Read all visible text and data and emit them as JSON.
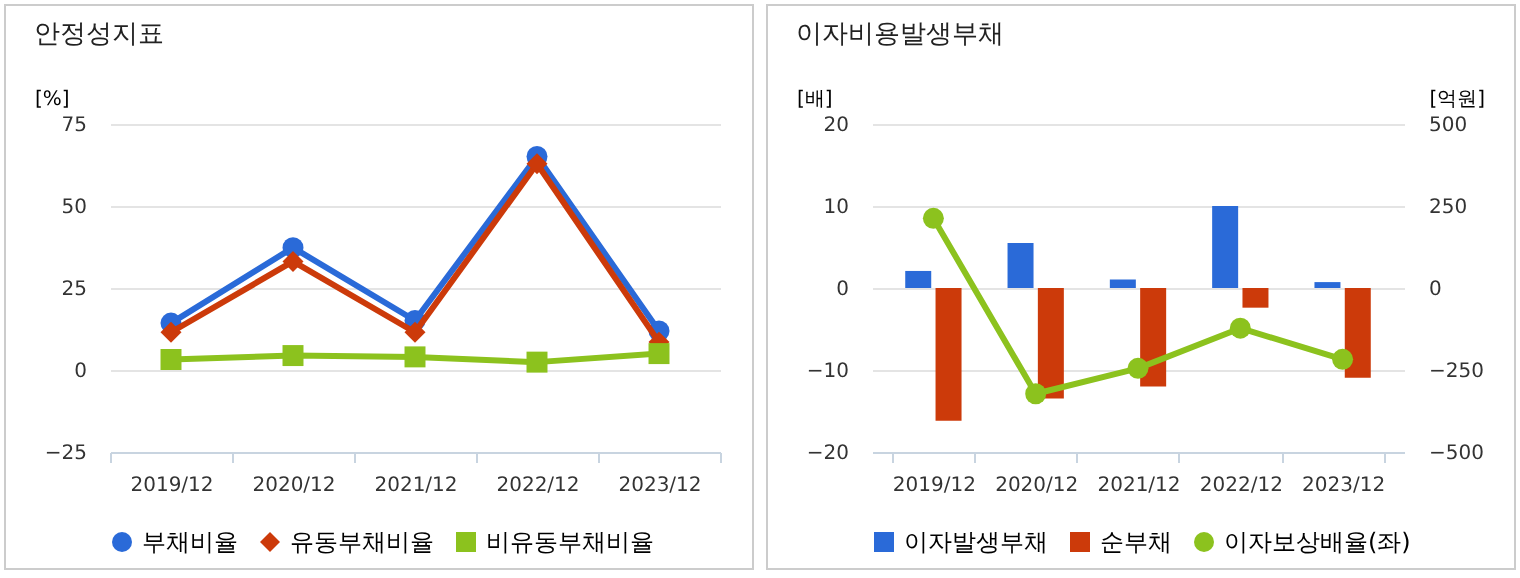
{
  "chart_data": [
    {
      "type": "line",
      "title": "안정성지표",
      "ylabel": "[%]",
      "categories": [
        "2019/12",
        "2020/12",
        "2021/12",
        "2022/12",
        "2023/12"
      ],
      "ylim": [
        -25,
        75
      ],
      "yticks": [
        -25,
        0,
        25,
        50,
        75
      ],
      "grid": "y",
      "legend": "bottom",
      "series": [
        {
          "name": "부채비율",
          "color": "#2a6ad8",
          "marker": "circle",
          "values": [
            14.3,
            37.3,
            15.1,
            65.1,
            11.9
          ]
        },
        {
          "name": "유동부채비율",
          "color": "#cc3a0a",
          "marker": "diamond",
          "values": [
            11.5,
            33.1,
            11.5,
            62.9,
            8.5
          ]
        },
        {
          "name": "비유동부채비율",
          "color": "#8cc21e",
          "marker": "square",
          "values": [
            3.2,
            4.4,
            4.0,
            2.4,
            5.0
          ]
        }
      ]
    },
    {
      "type": "bar",
      "title": "이자비용발생부채",
      "ylabel": "[배]",
      "y2label": "[억원]",
      "categories": [
        "2019/12",
        "2020/12",
        "2021/12",
        "2022/12",
        "2023/12"
      ],
      "ylim": [
        -20,
        20
      ],
      "yticks": [
        -20,
        -10,
        0,
        10,
        20
      ],
      "y2lim": [
        -500,
        500
      ],
      "y2ticks": [
        -500,
        -250,
        0,
        250,
        500
      ],
      "grid": "y",
      "legend": "bottom",
      "series": [
        {
          "name": "이자발생부채",
          "color": "#2a6ad8",
          "axis": "y2",
          "values": [
            52,
            137,
            26,
            250,
            18
          ]
        },
        {
          "name": "순부채",
          "color": "#cc3a0a",
          "axis": "y2",
          "values": [
            -405,
            -337,
            -300,
            -60,
            -274
          ]
        },
        {
          "name": "이자보상배율(좌)",
          "type": "line",
          "color": "#8cc21e",
          "marker": "circle",
          "values": [
            8.5,
            -12.9,
            -9.8,
            -4.9,
            -8.7
          ]
        }
      ]
    }
  ]
}
